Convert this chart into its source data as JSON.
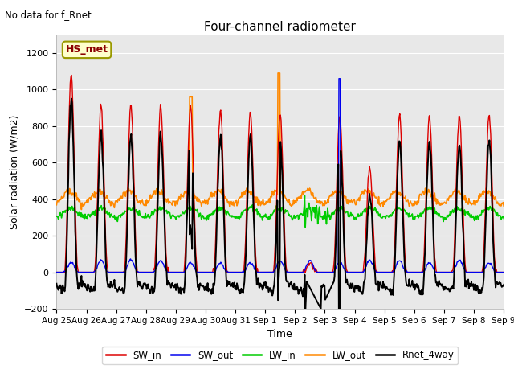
{
  "title": "Four-channel radiometer",
  "note": "No data for f_Rnet",
  "ylabel": "Solar radiation (W/m2)",
  "xlabel": "Time",
  "station_label": "HS_met",
  "ylim": [
    -200,
    1300
  ],
  "yticks": [
    -200,
    0,
    200,
    400,
    600,
    800,
    1000,
    1200
  ],
  "n_days": 15,
  "xtick_labels": [
    "Aug 25",
    "Aug 26",
    "Aug 27",
    "Aug 28",
    "Aug 29",
    "Aug 30",
    "Aug 31",
    "Sep 1",
    "Sep 2",
    "Sep 3",
    "Sep 4",
    "Sep 5",
    "Sep 6",
    "Sep 7",
    "Sep 8",
    "Sep 9"
  ],
  "colors": {
    "SW_in": "#dd0000",
    "SW_out": "#0000ee",
    "LW_in": "#00cc00",
    "LW_out": "#ff8800",
    "Rnet_4way": "#000000"
  },
  "fig_bg": "#ffffff",
  "axes_bg": "#e8e8e8",
  "grid_color": "#ffffff",
  "legend_items": [
    "SW_in",
    "SW_out",
    "LW_in",
    "LW_out",
    "Rnet_4way"
  ],
  "line_widths": {
    "SW_in": 1.0,
    "SW_out": 1.0,
    "LW_in": 1.2,
    "LW_out": 1.2,
    "Rnet_4way": 1.4
  },
  "sw_in_peaks": [
    1090,
    910,
    910,
    905,
    910,
    895,
    870,
    860,
    50,
    860,
    575,
    860,
    855,
    860,
    860
  ],
  "lw_out_spike_day": 4,
  "lw_out_spike_day2": 7,
  "sw_out_spike_day": 9,
  "sw_out_spike_val": 1060
}
